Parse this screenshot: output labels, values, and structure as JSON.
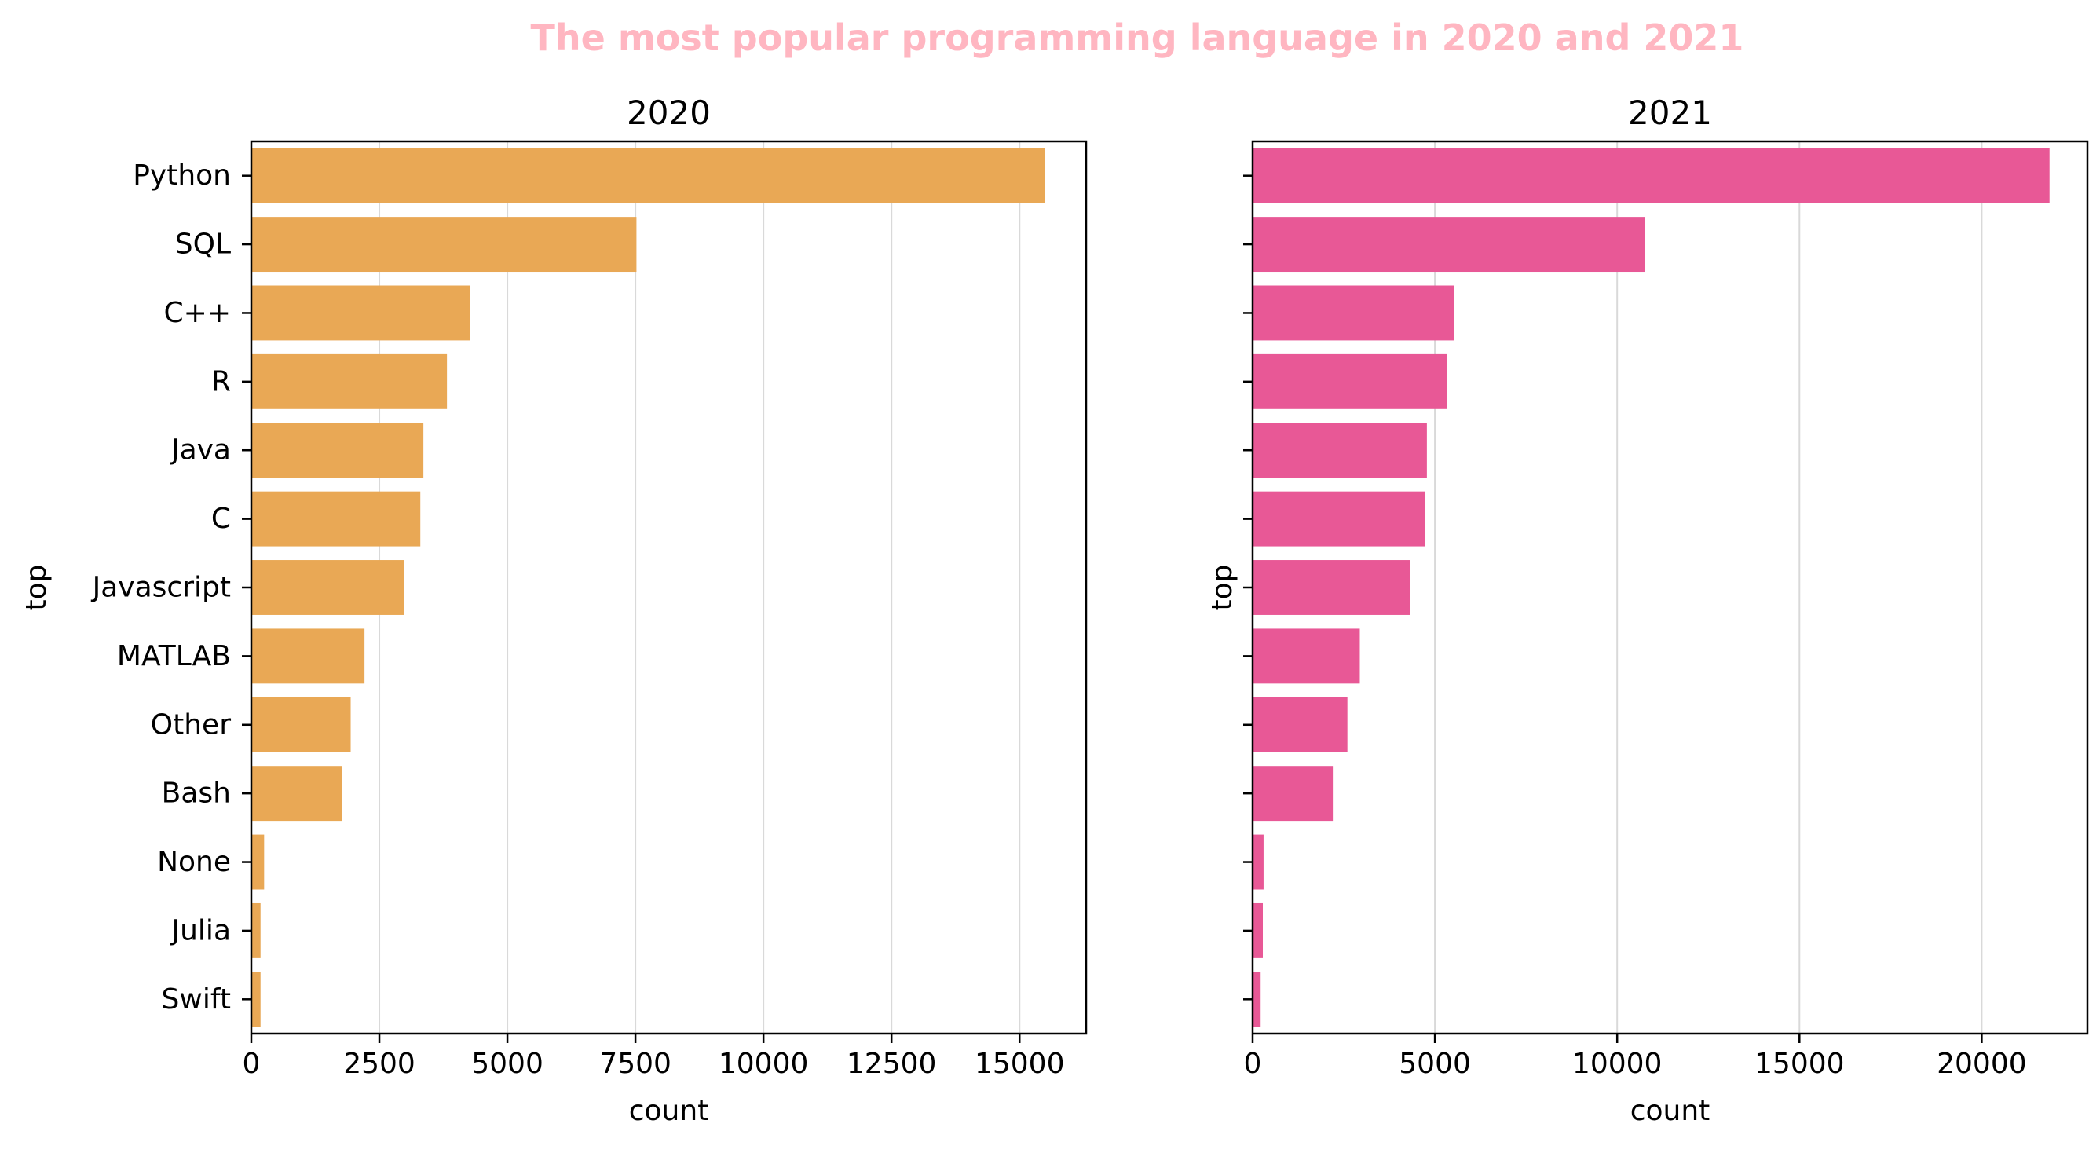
{
  "figure": {
    "title": "The most popular programming language in 2020 and 2021",
    "title_color": "#ffb6c1"
  },
  "chart_data": [
    {
      "type": "bar",
      "orientation": "horizontal",
      "title": "2020",
      "xlabel": "count",
      "ylabel": "top",
      "color": "#e9a855",
      "xlim": [
        0,
        16300
      ],
      "xticks": [
        0,
        2500,
        5000,
        7500,
        10000,
        12500,
        15000
      ],
      "grid": "x",
      "categories": [
        "Python",
        "SQL",
        "C++",
        "R",
        "Java",
        "C",
        "Javascript",
        "MATLAB",
        "Other",
        "Bash",
        "None",
        "Julia",
        "Swift"
      ],
      "values": [
        15500,
        7520,
        4270,
        3820,
        3360,
        3300,
        2990,
        2210,
        1940,
        1770,
        250,
        180,
        180
      ]
    },
    {
      "type": "bar",
      "orientation": "horizontal",
      "title": "2021",
      "xlabel": "count",
      "ylabel": "top",
      "color": "#e85896",
      "xlim": [
        0,
        22900
      ],
      "xticks": [
        0,
        5000,
        10000,
        15000,
        20000
      ],
      "grid": "x",
      "categories": [
        "Python",
        "SQL",
        "C++",
        "R",
        "Java",
        "C",
        "Javascript",
        "MATLAB",
        "Other",
        "Bash",
        "None",
        "Julia",
        "Swift"
      ],
      "values": [
        21860,
        10750,
        5530,
        5330,
        4780,
        4720,
        4330,
        2940,
        2600,
        2200,
        300,
        280,
        220
      ]
    }
  ]
}
